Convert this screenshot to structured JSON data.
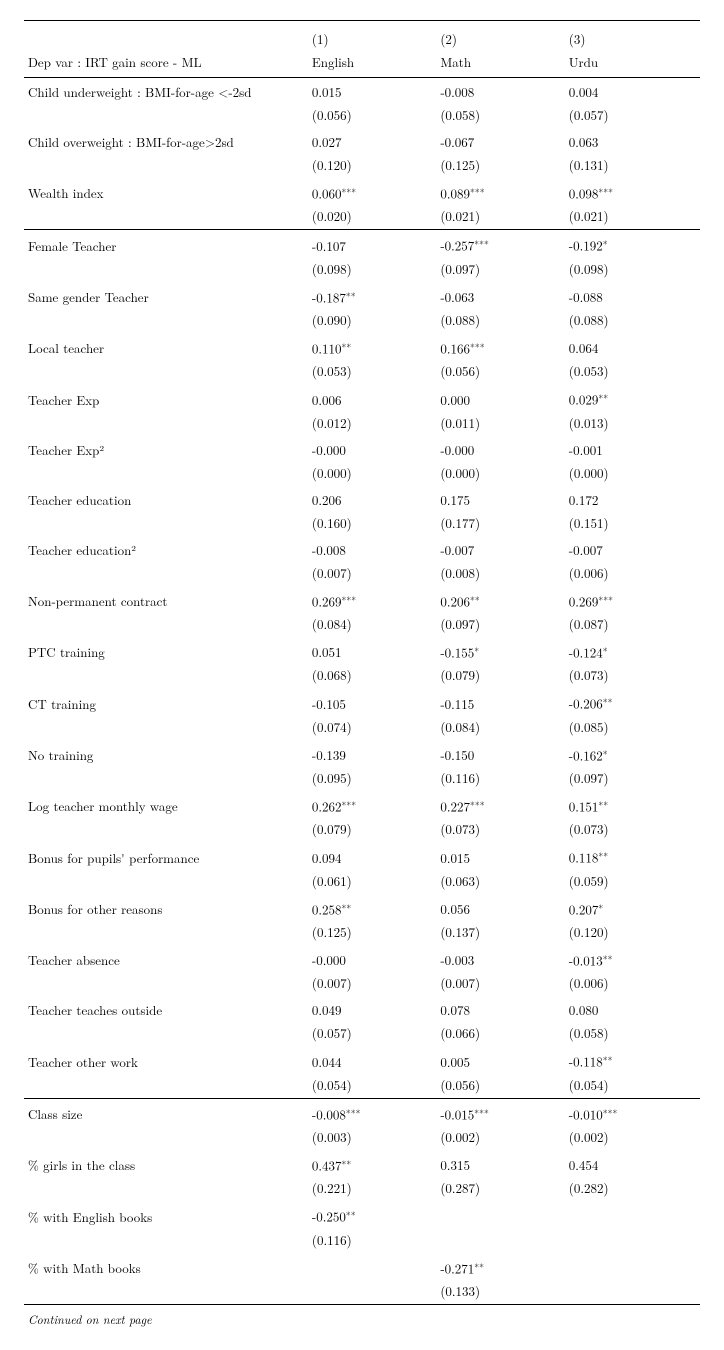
{
  "header": {
    "depvar_label": "Dep var : IRT gain score - ML",
    "cols": [
      {
        "num": "(1)",
        "label": "English"
      },
      {
        "num": "(2)",
        "label": "Math"
      },
      {
        "num": "(3)",
        "label": "Urdu"
      }
    ]
  },
  "sections": [
    {
      "rows": [
        {
          "label": "Child underweight : BMI-for-age <-2sd",
          "coef": [
            "0.015",
            "-0.008",
            "0.004"
          ],
          "star": [
            "",
            "",
            ""
          ],
          "se": [
            "(0.056)",
            "(0.058)",
            "(0.057)"
          ]
        },
        {
          "label": "Child overweight : BMI-for-age>2sd",
          "coef": [
            "0.027",
            "-0.067",
            "0.063"
          ],
          "star": [
            "",
            "",
            ""
          ],
          "se": [
            "(0.120)",
            "(0.125)",
            "(0.131)"
          ]
        },
        {
          "label": "Wealth index",
          "coef": [
            "0.060",
            "0.089",
            "0.098"
          ],
          "star": [
            "***",
            "***",
            "***"
          ],
          "se": [
            "(0.020)",
            "(0.021)",
            "(0.021)"
          ]
        }
      ]
    },
    {
      "rows": [
        {
          "label": "Female Teacher",
          "coef": [
            "-0.107",
            "-0.257",
            "-0.192"
          ],
          "star": [
            "",
            "***",
            "*"
          ],
          "se": [
            "(0.098)",
            "(0.097)",
            "(0.098)"
          ]
        },
        {
          "label": "Same gender Teacher",
          "coef": [
            "-0.187",
            "-0.063",
            "-0.088"
          ],
          "star": [
            "**",
            "",
            ""
          ],
          "se": [
            "(0.090)",
            "(0.088)",
            "(0.088)"
          ]
        },
        {
          "label": "Local teacher",
          "coef": [
            "0.110",
            "0.166",
            "0.064"
          ],
          "star": [
            "**",
            "***",
            ""
          ],
          "se": [
            "(0.053)",
            "(0.056)",
            "(0.053)"
          ]
        },
        {
          "label": "Teacher Exp",
          "coef": [
            "0.006",
            "0.000",
            "0.029"
          ],
          "star": [
            "",
            "",
            "**"
          ],
          "se": [
            "(0.012)",
            "(0.011)",
            "(0.013)"
          ]
        },
        {
          "label": "Teacher Exp²",
          "coef": [
            "-0.000",
            "-0.000",
            "-0.001"
          ],
          "star": [
            "",
            "",
            ""
          ],
          "se": [
            "(0.000)",
            "(0.000)",
            "(0.000)"
          ]
        },
        {
          "label": "Teacher education",
          "coef": [
            "0.206",
            "0.175",
            "0.172"
          ],
          "star": [
            "",
            "",
            ""
          ],
          "se": [
            "(0.160)",
            "(0.177)",
            "(0.151)"
          ]
        },
        {
          "label": "Teacher education²",
          "coef": [
            "-0.008",
            "-0.007",
            "-0.007"
          ],
          "star": [
            "",
            "",
            ""
          ],
          "se": [
            "(0.007)",
            "(0.008)",
            "(0.006)"
          ]
        },
        {
          "label": "Non-permanent contract",
          "coef": [
            "0.269",
            "0.206",
            "0.269"
          ],
          "star": [
            "***",
            "**",
            "***"
          ],
          "se": [
            "(0.084)",
            "(0.097)",
            "(0.087)"
          ]
        },
        {
          "label": "PTC training",
          "coef": [
            "0.051",
            "-0.155",
            "-0.124"
          ],
          "star": [
            "",
            "*",
            "*"
          ],
          "se": [
            "(0.068)",
            "(0.079)",
            "(0.073)"
          ]
        },
        {
          "label": "CT training",
          "coef": [
            "-0.105",
            "-0.115",
            "-0.206"
          ],
          "star": [
            "",
            "",
            "**"
          ],
          "se": [
            "(0.074)",
            "(0.084)",
            "(0.085)"
          ]
        },
        {
          "label": "No training",
          "coef": [
            "-0.139",
            "-0.150",
            "-0.162"
          ],
          "star": [
            "",
            "",
            "*"
          ],
          "se": [
            "(0.095)",
            "(0.116)",
            "(0.097)"
          ]
        },
        {
          "label": "Log teacher monthly wage",
          "coef": [
            "0.262",
            "0.227",
            "0.151"
          ],
          "star": [
            "***",
            "***",
            "**"
          ],
          "se": [
            "(0.079)",
            "(0.073)",
            "(0.073)"
          ]
        },
        {
          "label": "Bonus for pupils' performance",
          "coef": [
            "0.094",
            "0.015",
            "0.118"
          ],
          "star": [
            "",
            "",
            "**"
          ],
          "se": [
            "(0.061)",
            "(0.063)",
            "(0.059)"
          ]
        },
        {
          "label": "Bonus for other reasons",
          "coef": [
            "0.258",
            "0.056",
            "0.207"
          ],
          "star": [
            "**",
            "",
            "*"
          ],
          "se": [
            "(0.125)",
            "(0.137)",
            "(0.120)"
          ]
        },
        {
          "label": "Teacher absence",
          "coef": [
            "-0.000",
            "-0.003",
            "-0.013"
          ],
          "star": [
            "",
            "",
            "**"
          ],
          "se": [
            "(0.007)",
            "(0.007)",
            "(0.006)"
          ]
        },
        {
          "label": "Teacher teaches outside",
          "coef": [
            "0.049",
            "0.078",
            "0.080"
          ],
          "star": [
            "",
            "",
            ""
          ],
          "se": [
            "(0.057)",
            "(0.066)",
            "(0.058)"
          ]
        },
        {
          "label": "Teacher other work",
          "coef": [
            "0.044",
            "0.005",
            "-0.118"
          ],
          "star": [
            "",
            "",
            "**"
          ],
          "se": [
            "(0.054)",
            "(0.056)",
            "(0.054)"
          ]
        }
      ]
    },
    {
      "rows": [
        {
          "label": "Class size",
          "coef": [
            "-0.008",
            "-0.015",
            "-0.010"
          ],
          "star": [
            "***",
            "***",
            "***"
          ],
          "se": [
            "(0.003)",
            "(0.002)",
            "(0.002)"
          ]
        },
        {
          "label": "% girls in the class",
          "coef": [
            "0.437",
            "0.315",
            "0.454"
          ],
          "star": [
            "**",
            "",
            ""
          ],
          "se": [
            "(0.221)",
            "(0.287)",
            "(0.282)"
          ]
        },
        {
          "label": "% with English books",
          "coef": [
            "-0.250",
            "",
            ""
          ],
          "star": [
            "**",
            "",
            ""
          ],
          "se": [
            "(0.116)",
            "",
            ""
          ]
        },
        {
          "label": "% with Math books",
          "coef": [
            "",
            "-0.271",
            ""
          ],
          "star": [
            "",
            "**",
            ""
          ],
          "se": [
            "",
            "(0.133)",
            ""
          ]
        }
      ]
    }
  ],
  "footer": "Continued on next page"
}
